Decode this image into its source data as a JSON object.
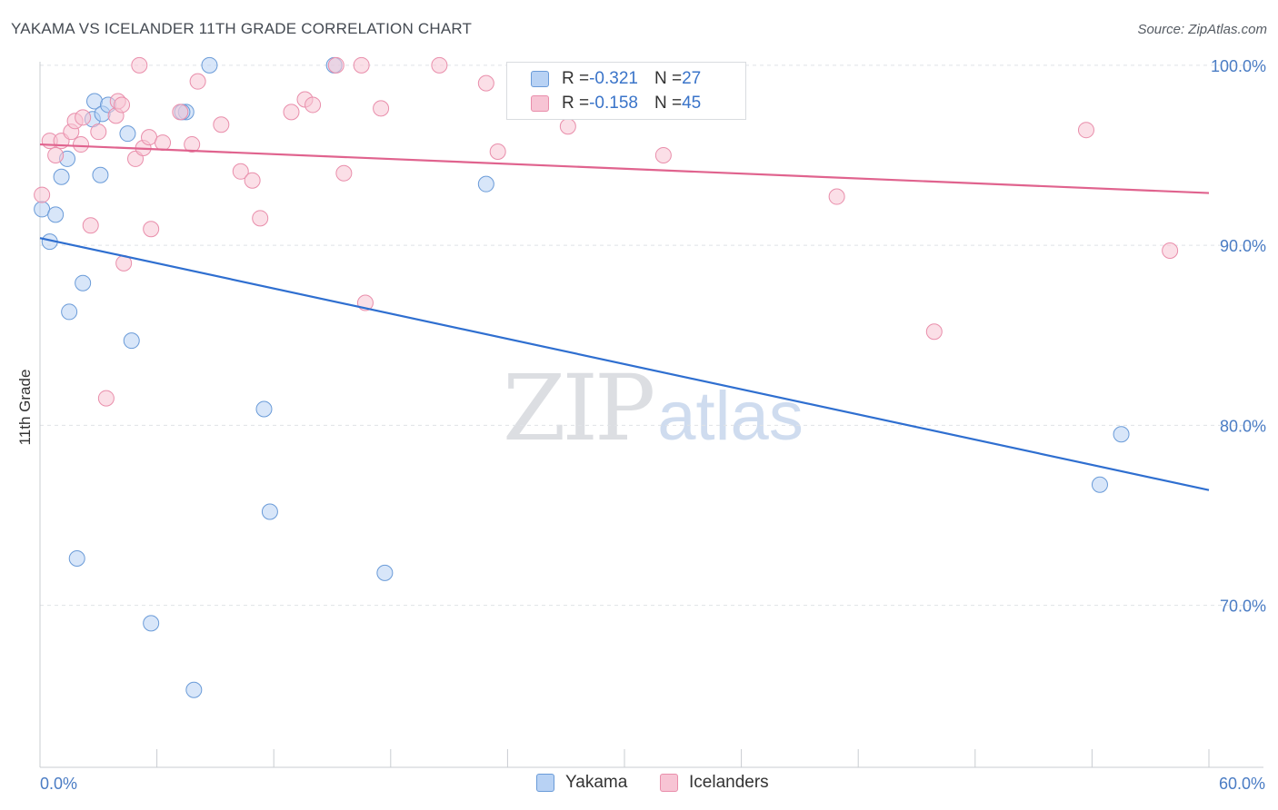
{
  "title": "YAKAMA VS ICELANDER 11TH GRADE CORRELATION CHART",
  "source": "Source: ZipAtlas.com",
  "watermark": {
    "zip": "ZIP",
    "atlas": "atlas"
  },
  "colors": {
    "yakama_fill": "#b8d2f4",
    "yakama_stroke": "#6a9bd8",
    "yakama_line": "#2f6fd0",
    "icelanders_fill": "#f7c4d4",
    "icelanders_stroke": "#e98eab",
    "icelanders_line": "#e0638e",
    "tick_text": "#4a7cc4",
    "grid": "#dfe2e6"
  },
  "legend": {
    "rows": [
      {
        "r_label": "R = ",
        "r_value": "-0.321",
        "n_label": "N = ",
        "n_value": "27"
      },
      {
        "r_label": "R = ",
        "r_value": "-0.158",
        "n_label": "N = ",
        "n_value": "45"
      }
    ]
  },
  "bottom_legend": {
    "yakama": "Yakama",
    "icelanders": "Icelanders"
  },
  "chart_data": {
    "type": "scatter",
    "title": "YAKAMA VS ICELANDER 11TH GRADE CORRELATION CHART",
    "xlabel": "",
    "ylabel": "11th Grade",
    "xlim": [
      0,
      60
    ],
    "ylim": [
      61,
      101
    ],
    "x_ticks": [
      0,
      6,
      12,
      18,
      24,
      30,
      36,
      42,
      48,
      54,
      60
    ],
    "x_tick_labels": {
      "0": "0.0%",
      "60": "60.0%"
    },
    "y_ticks": [
      70,
      80,
      90,
      100
    ],
    "y_tick_labels": [
      "70.0%",
      "80.0%",
      "90.0%",
      "100.0%"
    ],
    "grid": true,
    "legend_position": "top-center",
    "series": [
      {
        "name": "Yakama",
        "r": -0.321,
        "n": 27,
        "trend": {
          "x": [
            0,
            60
          ],
          "y": [
            90.4,
            76.4
          ]
        },
        "points": [
          [
            0.1,
            92.0
          ],
          [
            0.8,
            91.7
          ],
          [
            0.5,
            90.2
          ],
          [
            1.1,
            93.8
          ],
          [
            1.4,
            94.8
          ],
          [
            2.7,
            97.0
          ],
          [
            2.8,
            98.0
          ],
          [
            3.2,
            97.3
          ],
          [
            3.5,
            97.8
          ],
          [
            4.5,
            96.2
          ],
          [
            3.1,
            93.9
          ],
          [
            2.2,
            87.9
          ],
          [
            1.5,
            86.3
          ],
          [
            4.7,
            84.7
          ],
          [
            7.5,
            97.4
          ],
          [
            8.7,
            100.0
          ],
          [
            15.1,
            100.0
          ],
          [
            22.9,
            93.4
          ],
          [
            11.5,
            80.9
          ],
          [
            11.8,
            75.2
          ],
          [
            1.9,
            72.6
          ],
          [
            5.7,
            69.0
          ],
          [
            7.9,
            65.3
          ],
          [
            17.7,
            71.8
          ],
          [
            55.5,
            79.5
          ],
          [
            54.4,
            76.7
          ],
          [
            7.3,
            97.4
          ]
        ]
      },
      {
        "name": "Icelanders",
        "r": -0.158,
        "n": 45,
        "trend": {
          "x": [
            0,
            60
          ],
          "y": [
            95.6,
            92.9
          ]
        },
        "points": [
          [
            0.1,
            92.8
          ],
          [
            0.5,
            95.8
          ],
          [
            1.1,
            95.8
          ],
          [
            0.8,
            95.0
          ],
          [
            1.6,
            96.3
          ],
          [
            1.8,
            96.9
          ],
          [
            2.2,
            97.1
          ],
          [
            2.1,
            95.6
          ],
          [
            2.6,
            91.1
          ],
          [
            3.0,
            96.3
          ],
          [
            3.9,
            97.2
          ],
          [
            4.0,
            98.0
          ],
          [
            4.2,
            97.8
          ],
          [
            4.9,
            94.8
          ],
          [
            5.3,
            95.4
          ],
          [
            5.1,
            100.0
          ],
          [
            5.6,
            96.0
          ],
          [
            6.3,
            95.7
          ],
          [
            7.2,
            97.4
          ],
          [
            7.8,
            95.6
          ],
          [
            8.1,
            99.1
          ],
          [
            9.3,
            96.7
          ],
          [
            10.3,
            94.1
          ],
          [
            10.9,
            93.6
          ],
          [
            11.3,
            91.5
          ],
          [
            12.9,
            97.4
          ],
          [
            13.6,
            98.1
          ],
          [
            14.0,
            97.8
          ],
          [
            15.2,
            100.0
          ],
          [
            15.6,
            94.0
          ],
          [
            16.5,
            100.0
          ],
          [
            17.5,
            97.6
          ],
          [
            20.5,
            100.0
          ],
          [
            22.9,
            99.0
          ],
          [
            23.5,
            95.2
          ],
          [
            27.1,
            96.6
          ],
          [
            32.0,
            95.0
          ],
          [
            40.9,
            92.7
          ],
          [
            45.9,
            85.2
          ],
          [
            53.7,
            96.4
          ],
          [
            58.0,
            89.7
          ],
          [
            4.3,
            89.0
          ],
          [
            5.7,
            90.9
          ],
          [
            16.7,
            86.8
          ],
          [
            3.4,
            81.5
          ]
        ]
      }
    ]
  }
}
